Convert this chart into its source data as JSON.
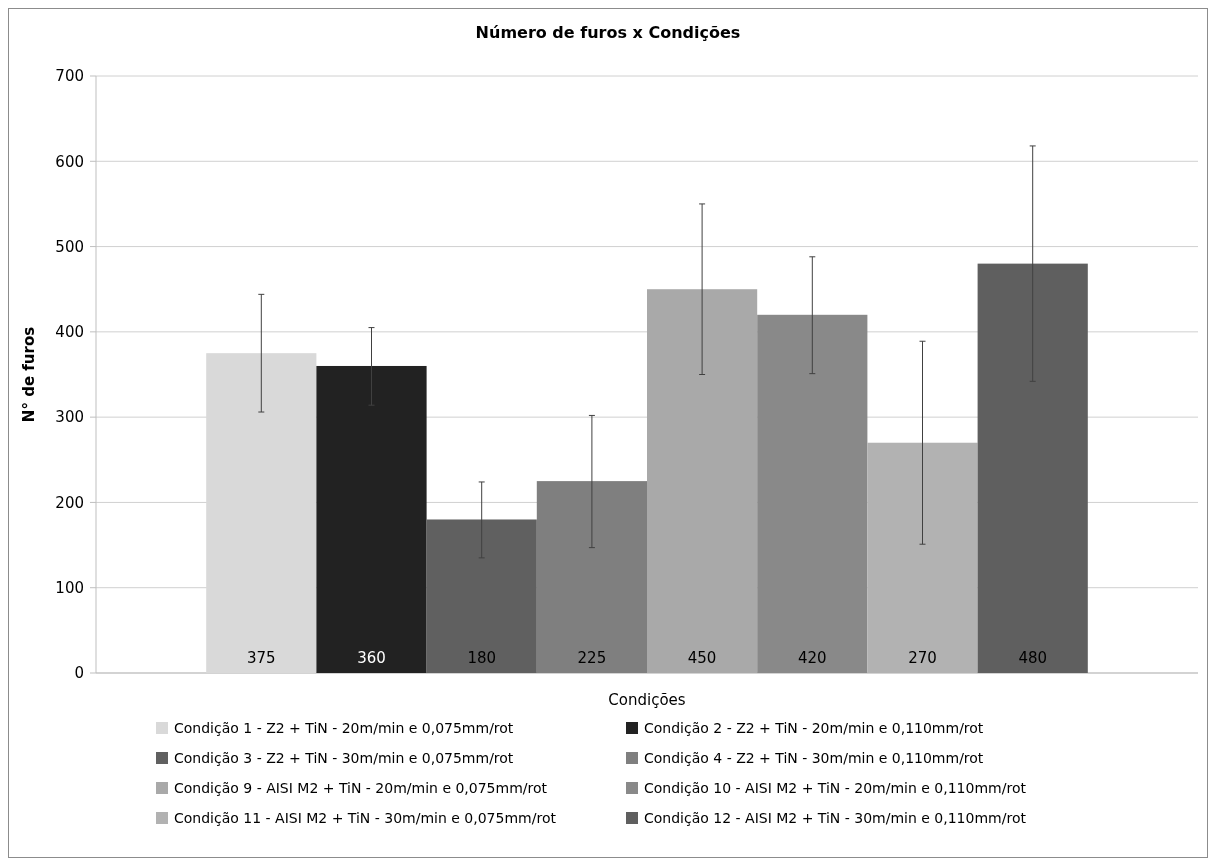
{
  "chart_data": {
    "type": "bar",
    "title": "Número de furos x Condições",
    "xlabel": "Condições",
    "ylabel": "N° de furos",
    "categories": [
      null
    ],
    "series": [
      {
        "name": "Condição 1 - Z2 + TiN - 20m/min e 0,075mm/rot",
        "color": "#d9d9d9",
        "values": [
          375
        ],
        "errors": [
          [
            306,
            444
          ]
        ]
      },
      {
        "name": "Condição 2 - Z2 + TiN -  20m/min e 0,110mm/rot",
        "color": "#222222",
        "values": [
          360
        ],
        "errors": [
          [
            314,
            405
          ]
        ]
      },
      {
        "name": "Condição 3 - Z2 + TiN - 30m/min e 0,075mm/rot",
        "color": "#606060",
        "values": [
          180
        ],
        "errors": [
          [
            135,
            224
          ]
        ]
      },
      {
        "name": "Condição 4 - Z2 + TiN - 30m/min e 0,110mm/rot",
        "color": "#7f7f7f",
        "values": [
          225
        ],
        "errors": [
          [
            147,
            302
          ]
        ]
      },
      {
        "name": "Condição 9 - AISI M2 + TiN - 20m/min e 0,075mm/rot",
        "color": "#a9a9a9",
        "values": [
          450
        ],
        "errors": [
          [
            350,
            550
          ]
        ]
      },
      {
        "name": "Condição 10 - AISI M2 + TiN - 20m/min e 0,110mm/rot",
        "color": "#898989",
        "values": [
          420
        ],
        "errors": [
          [
            351,
            488
          ]
        ]
      },
      {
        "name": "Condição 11 - AISI M2 + TiN - 30m/min e 0,075mm/rot",
        "color": "#b2b2b2",
        "values": [
          270
        ],
        "errors": [
          [
            151,
            389
          ]
        ]
      },
      {
        "name": "Condição 12 - AISI M2 + TiN - 30m/min e 0,110mm/rot",
        "color": "#5f5f5f",
        "values": [
          480
        ],
        "errors": [
          [
            342,
            618
          ]
        ]
      }
    ],
    "ylim": [
      0,
      700
    ],
    "yticks": [
      0,
      100,
      200,
      300,
      400,
      500,
      600,
      700
    ],
    "grid": "y",
    "legend": "bottom",
    "data_labels": true
  }
}
